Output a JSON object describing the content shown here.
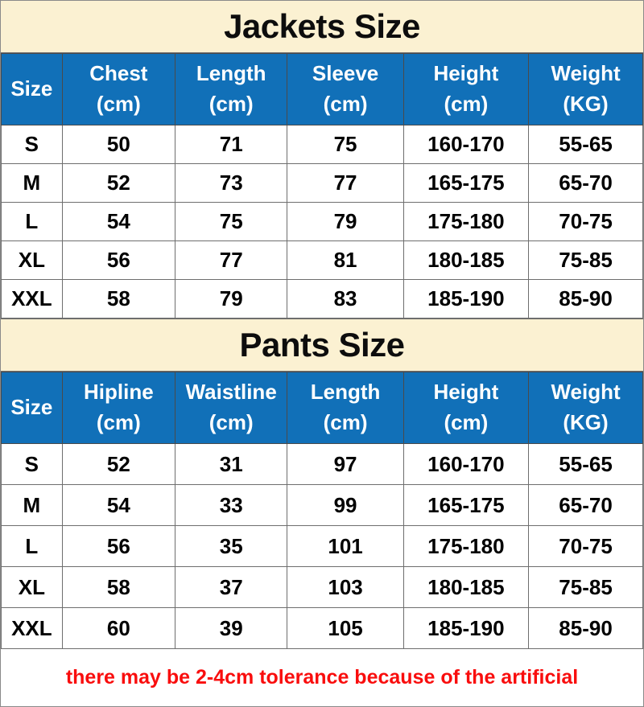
{
  "colors": {
    "banner_bg": "#FBF1D2",
    "header_bg": "#1170B8",
    "header_text": "#FFFFFF",
    "grid_border": "#6E6E6E",
    "note_red": "#F90D0D"
  },
  "jackets": {
    "title": "Jackets Size",
    "columns": [
      {
        "label": "Size",
        "unit": ""
      },
      {
        "label": "Chest",
        "unit": "(cm)"
      },
      {
        "label": "Length",
        "unit": "(cm)"
      },
      {
        "label": "Sleeve",
        "unit": "(cm)"
      },
      {
        "label": "Height",
        "unit": "(cm)"
      },
      {
        "label": "Weight",
        "unit": "(KG)"
      }
    ],
    "rows": [
      [
        "S",
        "50",
        "71",
        "75",
        "160-170",
        "55-65"
      ],
      [
        "M",
        "52",
        "73",
        "77",
        "165-175",
        "65-70"
      ],
      [
        "L",
        "54",
        "75",
        "79",
        "175-180",
        "70-75"
      ],
      [
        "XL",
        "56",
        "77",
        "81",
        "180-185",
        "75-85"
      ],
      [
        "XXL",
        "58",
        "79",
        "83",
        "185-190",
        "85-90"
      ]
    ]
  },
  "pants": {
    "title": "Pants Size",
    "columns": [
      {
        "label": "Size",
        "unit": ""
      },
      {
        "label": "Hipline",
        "unit": "(cm)"
      },
      {
        "label": "Waistline",
        "unit": "(cm)"
      },
      {
        "label": "Length",
        "unit": "(cm)"
      },
      {
        "label": "Height",
        "unit": "(cm)"
      },
      {
        "label": "Weight",
        "unit": "(KG)"
      }
    ],
    "rows": [
      [
        "S",
        "52",
        "31",
        "97",
        "160-170",
        "55-65"
      ],
      [
        "M",
        "54",
        "33",
        "99",
        "165-175",
        "65-70"
      ],
      [
        "L",
        "56",
        "35",
        "101",
        "175-180",
        "70-75"
      ],
      [
        "XL",
        "58",
        "37",
        "103",
        "180-185",
        "75-85"
      ],
      [
        "XXL",
        "60",
        "39",
        "105",
        "185-190",
        "85-90"
      ]
    ]
  },
  "note": "there may be 2-4cm tolerance because of the artificial"
}
